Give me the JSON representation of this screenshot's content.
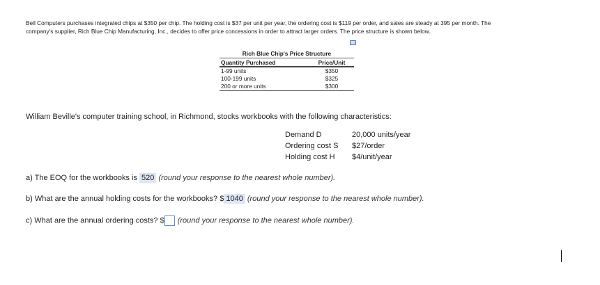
{
  "intro": {
    "line1": "Bell Computers purchases integrated chips at $350 per chip. The holding cost is $37 per unit per year, the ordering cost is $119 per order, and sales are steady at 395 per month. The",
    "line2": "company's supplier, Rich Blue Chip Manufacturing, Inc., decides to offer price concessions in order to attract larger orders. The price structure is shown below."
  },
  "table": {
    "title": "Rich Blue Chip's Price Structure",
    "headers": [
      "Quantity Purchased",
      "Price/Unit"
    ],
    "rows": [
      [
        "1-99 units",
        "$350"
      ],
      [
        "100-199 units",
        "$325"
      ],
      [
        "200 or more units",
        "$300"
      ]
    ]
  },
  "problem": {
    "text": "William Beville's computer training school, in Richmond, stocks workbooks with the following characteristics:",
    "specs": [
      {
        "label": "Demand D",
        "value": "20,000 units/year"
      },
      {
        "label": "Ordering cost S",
        "value": "$27/order"
      },
      {
        "label": "Holding cost H",
        "value": "$4/unit/year"
      }
    ]
  },
  "questions": {
    "a": {
      "prefix": "a) The EOQ for the workbooks is",
      "answer": "520",
      "hint": "(round your response to the nearest whole number)."
    },
    "b": {
      "prefix": "b) What are the annual holding costs for the workbooks? $",
      "answer": "1040",
      "hint": "(round your response to the nearest whole number)."
    },
    "c": {
      "prefix": "c) What are the annual ordering costs? $",
      "answer": "",
      "hint": "(round your response to the nearest whole number)."
    }
  }
}
